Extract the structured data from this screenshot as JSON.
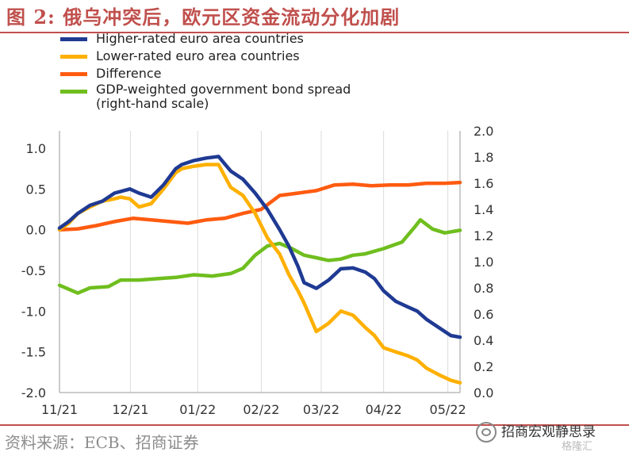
{
  "title": "图 2: 俄乌冲突后，欧元区资金流动分化加剧",
  "source": "资料来源：ECB、招商证券",
  "watermark": "招商宏观静思录",
  "watermark2": "格隆汇",
  "chart_data": {
    "type": "line",
    "x_ticks": [
      "11/21",
      "12/21",
      "01/22",
      "02/22",
      "03/22",
      "04/22",
      "05/22"
    ],
    "y_left": {
      "ticks": [
        "1.0",
        "0.5",
        "0.0",
        "-0.5",
        "-1.0",
        "-1.5",
        "-2.0"
      ],
      "range": [
        -2.0,
        1.0
      ]
    },
    "y_right": {
      "ticks": [
        "2.0",
        "1.8",
        "1.6",
        "1.4",
        "1.2",
        "1.0",
        "0.8",
        "0.6",
        "0.4",
        "0.2",
        "0.0"
      ],
      "range": [
        0.0,
        2.0
      ]
    },
    "legend_position": "top-left",
    "series": [
      {
        "name": "Higher-rated euro area countries",
        "color": "#1f3a93",
        "axis": "left",
        "x": [
          0,
          0.15,
          0.3,
          0.5,
          0.7,
          0.9,
          1.0,
          1.15,
          1.3,
          1.5,
          1.7,
          1.9,
          2.0,
          2.2,
          2.4,
          2.6,
          2.8,
          3.0,
          3.2,
          3.4,
          3.6,
          3.75,
          3.9,
          4.0,
          4.2,
          4.4,
          4.6,
          4.8,
          5.0,
          5.15,
          5.3,
          5.5,
          5.7,
          5.85,
          6.0,
          6.2,
          6.4,
          6.55
        ],
        "values": [
          0.02,
          0.1,
          0.2,
          0.3,
          0.35,
          0.45,
          0.47,
          0.5,
          0.45,
          0.4,
          0.55,
          0.75,
          0.8,
          0.85,
          0.88,
          0.9,
          0.72,
          0.62,
          0.45,
          0.25,
          0.0,
          -0.2,
          -0.45,
          -0.65,
          -0.72,
          -0.62,
          -0.48,
          -0.47,
          -0.52,
          -0.6,
          -0.75,
          -0.88,
          -0.95,
          -1.0,
          -1.1,
          -1.2,
          -1.3,
          -1.32
        ]
      },
      {
        "name": "Lower-rated euro area countries",
        "color": "#ffb000",
        "axis": "left",
        "x": [
          0,
          0.15,
          0.3,
          0.5,
          0.7,
          0.9,
          1.0,
          1.15,
          1.3,
          1.5,
          1.7,
          1.9,
          2.0,
          2.2,
          2.4,
          2.6,
          2.8,
          3.0,
          3.2,
          3.4,
          3.6,
          3.75,
          3.9,
          4.0,
          4.2,
          4.4,
          4.6,
          4.8,
          5.0,
          5.15,
          5.3,
          5.5,
          5.7,
          5.85,
          6.0,
          6.2,
          6.4,
          6.55
        ],
        "values": [
          0.0,
          0.08,
          0.2,
          0.28,
          0.35,
          0.38,
          0.4,
          0.38,
          0.28,
          0.32,
          0.5,
          0.7,
          0.75,
          0.78,
          0.8,
          0.8,
          0.52,
          0.42,
          0.2,
          -0.1,
          -0.3,
          -0.55,
          -0.75,
          -0.9,
          -1.25,
          -1.15,
          -1.0,
          -1.05,
          -1.2,
          -1.3,
          -1.45,
          -1.5,
          -1.55,
          -1.6,
          -1.7,
          -1.78,
          -1.85,
          -1.88
        ]
      },
      {
        "name": "Difference",
        "color": "#ff5b10",
        "axis": "left",
        "x": [
          0,
          0.3,
          0.6,
          0.9,
          1.2,
          1.5,
          1.8,
          2.1,
          2.4,
          2.7,
          3.0,
          3.3,
          3.6,
          3.9,
          4.2,
          4.5,
          4.8,
          5.1,
          5.4,
          5.7,
          6.0,
          6.3,
          6.55
        ],
        "values": [
          0.0,
          0.01,
          0.05,
          0.1,
          0.14,
          0.12,
          0.1,
          0.08,
          0.12,
          0.14,
          0.2,
          0.25,
          0.42,
          0.45,
          0.48,
          0.55,
          0.56,
          0.54,
          0.55,
          0.55,
          0.57,
          0.57,
          0.58
        ]
      },
      {
        "name": "GDP-weighted government bond spread",
        "note": "(right-hand scale)",
        "color": "#6fbe1e",
        "axis": "right",
        "x": [
          0,
          0.3,
          0.5,
          0.8,
          1.0,
          1.3,
          1.6,
          1.9,
          2.2,
          2.5,
          2.8,
          3.0,
          3.2,
          3.4,
          3.6,
          3.8,
          4.0,
          4.2,
          4.4,
          4.6,
          4.8,
          5.0,
          5.3,
          5.6,
          5.8,
          5.9,
          6.1,
          6.3,
          6.55
        ],
        "values": [
          0.82,
          0.76,
          0.8,
          0.81,
          0.86,
          0.86,
          0.87,
          0.88,
          0.9,
          0.89,
          0.91,
          0.95,
          1.05,
          1.12,
          1.14,
          1.1,
          1.05,
          1.03,
          1.01,
          1.02,
          1.05,
          1.06,
          1.1,
          1.15,
          1.26,
          1.32,
          1.25,
          1.22,
          1.24
        ]
      }
    ]
  }
}
